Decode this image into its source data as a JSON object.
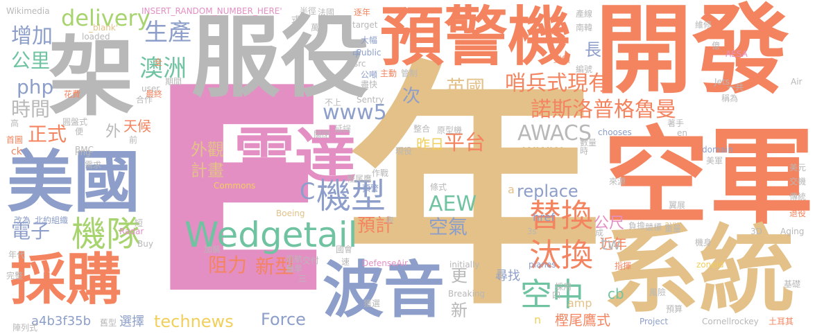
{
  "palette": {
    "orange": "#f4845f",
    "tan": "#e3c188",
    "gray": "#b8b8b8",
    "pink": "#e48fc4",
    "blue": "#8c9ec9",
    "green": "#6fc3a1",
    "lime": "#a7d46f",
    "yellow": "#f2cf5b"
  },
  "words": [
    {
      "text": "E",
      "color": "pink"
    },
    {
      "text": "年",
      "color": "tan"
    },
    {
      "text": "開發",
      "color": "orange"
    },
    {
      "text": "空軍",
      "color": "orange"
    },
    {
      "text": "系統",
      "color": "tan"
    },
    {
      "text": "服役",
      "color": "gray"
    },
    {
      "text": "架",
      "color": "gray"
    },
    {
      "text": "預警機",
      "color": "orange"
    },
    {
      "text": "美國",
      "color": "blue"
    },
    {
      "text": "採購",
      "color": "orange"
    },
    {
      "text": "雷達",
      "color": "pink"
    },
    {
      "text": "波音",
      "color": "blue"
    },
    {
      "text": "Wedgetail",
      "color": "green"
    },
    {
      "text": "機隊",
      "color": "lime"
    },
    {
      "text": "機型",
      "color": "blue"
    },
    {
      "text": "替換",
      "color": "orange"
    },
    {
      "text": "汰換",
      "color": "orange"
    },
    {
      "text": "空中",
      "color": "green"
    },
    {
      "text": "AWACS",
      "color": "gray"
    },
    {
      "text": "諾斯洛普格魯曼",
      "color": "orange"
    },
    {
      "text": "哨兵式現有",
      "color": "orange"
    },
    {
      "text": "澳洲",
      "color": "green"
    },
    {
      "text": "生產",
      "color": "blue"
    },
    {
      "text": "delivery",
      "color": "lime"
    },
    {
      "text": "增加",
      "color": "blue"
    },
    {
      "text": "公里",
      "color": "green"
    },
    {
      "text": "php",
      "color": "blue"
    },
    {
      "text": "時間",
      "color": "gray"
    },
    {
      "text": "正式",
      "color": "orange"
    },
    {
      "text": "電子",
      "color": "blue"
    },
    {
      "text": "英國",
      "color": "tan"
    },
    {
      "text": "www5",
      "color": "blue"
    },
    {
      "text": "www",
      "color": "tan"
    },
    {
      "text": "平台",
      "color": "orange"
    },
    {
      "text": "昨日",
      "color": "yellow"
    },
    {
      "text": "外觀",
      "color": "tan"
    },
    {
      "text": "計畫",
      "color": "tan"
    },
    {
      "text": "C",
      "color": "blue"
    },
    {
      "text": "AEW",
      "color": "green"
    },
    {
      "text": "空氣",
      "color": "blue"
    },
    {
      "text": "預計",
      "color": "orange"
    },
    {
      "text": "新型",
      "color": "orange"
    },
    {
      "text": "阻力",
      "color": "orange"
    },
    {
      "text": "replace",
      "color": "blue"
    },
    {
      "text": "公尺",
      "color": "pink"
    },
    {
      "text": "technews",
      "color": "yellow"
    },
    {
      "text": "Force",
      "color": "blue"
    },
    {
      "text": "近年",
      "color": "orange"
    },
    {
      "text": "更",
      "color": "gray"
    },
    {
      "text": "新",
      "color": "gray"
    },
    {
      "text": "尋找",
      "color": "blue"
    },
    {
      "text": "cb",
      "color": "green"
    },
    {
      "text": "amp",
      "color": "tan"
    },
    {
      "text": "樫尾鷹式",
      "color": "orange"
    },
    {
      "text": "選擇",
      "color": "blue"
    },
    {
      "text": "a4b3f35b",
      "color": "blue"
    },
    {
      "text": "天候",
      "color": "orange"
    },
    {
      "text": "次",
      "color": "blue"
    },
    {
      "text": "長",
      "color": "blue"
    },
    {
      "text": "外",
      "color": "gray"
    },
    {
      "text": "tw",
      "color": "gray"
    },
    {
      "text": "href",
      "color": "blue"
    },
    {
      "text": "INSERT_RANDOM_NUMBER_HERE'",
      "color": "pink"
    },
    {
      "text": "Wikimedia",
      "color": "gray"
    },
    {
      "text": "Commons",
      "color": "yellow"
    },
    {
      "text": "Boeing",
      "color": "tan"
    },
    {
      "text": "DefenseAir",
      "color": "pink"
    },
    {
      "text": "Breaking",
      "color": "gray"
    },
    {
      "text": "initially",
      "color": "gray"
    },
    {
      "text": "planes",
      "color": "blue"
    },
    {
      "text": "Jets",
      "color": "gray"
    },
    {
      "text": "chooses",
      "color": "blue"
    },
    {
      "text": "Sentry",
      "color": "gray"
    },
    {
      "text": "Cornellrockey",
      "color": "gray"
    },
    {
      "text": "Aging",
      "color": "gray"
    },
    {
      "text": "AESA",
      "color": "pink"
    },
    {
      "text": "zoneid",
      "color": "yellow"
    },
    {
      "text": "domain",
      "color": "blue"
    },
    {
      "text": "Project",
      "color": "blue"
    },
    {
      "text": "Radar",
      "color": "pink"
    },
    {
      "text": "BMC",
      "color": "gray"
    },
    {
      "text": "Public",
      "color": "blue"
    },
    {
      "text": "target",
      "color": "gray"
    },
    {
      "text": "loaded",
      "color": "gray"
    },
    {
      "text": "_blank'",
      "color": "tan"
    },
    {
      "text": "src",
      "color": "gray"
    },
    {
      "text": "img",
      "color": "gray"
    },
    {
      "text": "user",
      "color": "gray"
    },
    {
      "text": "ck",
      "color": "orange"
    },
    {
      "text": "en",
      "color": "gray"
    },
    {
      "text": "Air",
      "color": "gray"
    },
    {
      "text": "Buy",
      "color": "gray"
    },
    {
      "text": "3s",
      "color": "gray"
    },
    {
      "text": "3D",
      "color": "gray"
    },
    {
      "text": "avw",
      "color": "tan"
    },
    {
      "text": "a",
      "color": "tan"
    },
    {
      "text": "n",
      "color": "yellow"
    },
    {
      "text": "北約組織",
      "color": "blue"
    },
    {
      "text": "陣列式",
      "color": "gray"
    },
    {
      "text": "完整",
      "color": "gray"
    },
    {
      "text": "年代",
      "color": "gray"
    },
    {
      "text": "改為",
      "color": "blue"
    },
    {
      "text": "首圖",
      "color": "orange"
    },
    {
      "text": "高",
      "color": "gray"
    },
    {
      "text": "圓盤式",
      "color": "gray"
    },
    {
      "text": "花費",
      "color": "orange"
    },
    {
      "text": "便",
      "color": "gray"
    },
    {
      "text": "前",
      "color": "gray"
    },
    {
      "text": "需求",
      "color": "gray"
    },
    {
      "text": "全",
      "color": "orange"
    },
    {
      "text": "最終",
      "color": "orange"
    },
    {
      "text": "合作",
      "color": "gray"
    },
    {
      "text": "期間",
      "color": "gray"
    },
    {
      "text": "萬",
      "color": "gray"
    },
    {
      "text": "式",
      "color": "gray"
    },
    {
      "text": "半徑",
      "color": "gray"
    },
    {
      "text": "法國",
      "color": "gray"
    },
    {
      "text": "逐年",
      "color": "orange"
    },
    {
      "text": "大幅",
      "color": "blue"
    },
    {
      "text": "中",
      "color": "blue"
    },
    {
      "text": "公噸",
      "color": "blue"
    },
    {
      "text": "盡快",
      "color": "gray"
    },
    {
      "text": "主動",
      "color": "orange"
    },
    {
      "text": "管制",
      "color": "gray"
    },
    {
      "text": "不上",
      "color": "gray"
    },
    {
      "text": "延誤",
      "color": "gray"
    },
    {
      "text": "關閉",
      "color": "gray"
    },
    {
      "text": "整合",
      "color": "gray"
    },
    {
      "text": "原型機",
      "color": "gray"
    },
    {
      "text": "現役",
      "color": "gray"
    },
    {
      "text": "作戰",
      "color": "gray"
    },
    {
      "text": "樫尾鷹",
      "color": "gray"
    },
    {
      "text": "預警",
      "color": "blue"
    },
    {
      "text": "條式",
      "color": "gray"
    },
    {
      "text": "表",
      "color": "gray"
    },
    {
      "text": "加裝",
      "color": "gray"
    },
    {
      "text": "國會",
      "color": "gray"
    },
    {
      "text": "交付",
      "color": "gray"
    },
    {
      "text": "巡航",
      "color": "gray"
    },
    {
      "text": "最早",
      "color": "gray"
    },
    {
      "text": "速",
      "color": "gray"
    },
    {
      "text": "三",
      "color": "gray"
    },
    {
      "text": "獲選",
      "color": "gray"
    },
    {
      "text": "舊型",
      "color": "gray"
    },
    {
      "text": "短",
      "color": "gray"
    },
    {
      "text": "採用",
      "color": "gray"
    },
    {
      "text": "四",
      "color": "gray"
    },
    {
      "text": "產線",
      "color": "gray"
    },
    {
      "text": "南韓",
      "color": "gray"
    },
    {
      "text": "維修",
      "color": "gray"
    },
    {
      "text": "億",
      "color": "gray"
    },
    {
      "text": "編號",
      "color": "gray"
    },
    {
      "text": "封鎖",
      "color": "orange"
    },
    {
      "text": "一共",
      "color": "gray"
    },
    {
      "text": "稱為",
      "color": "gray"
    },
    {
      "text": "著手",
      "color": "gray"
    },
    {
      "text": "數量",
      "color": "gray"
    },
    {
      "text": "時",
      "color": "gray"
    },
    {
      "text": "美軍",
      "color": "gray"
    },
    {
      "text": "美元",
      "color": "gray"
    },
    {
      "text": "交機",
      "color": "gray"
    },
    {
      "text": "傳統",
      "color": "gray"
    },
    {
      "text": "翼展",
      "color": "gray"
    },
    {
      "text": "來源",
      "color": "gray"
    },
    {
      "text": "退役",
      "color": "orange"
    },
    {
      "text": "成",
      "color": "gray"
    },
    {
      "text": "負擔",
      "color": "gray"
    },
    {
      "text": "競標",
      "color": "gray"
    },
    {
      "text": "重量",
      "color": "gray"
    },
    {
      "text": "機身",
      "color": "gray"
    },
    {
      "text": "指揮",
      "color": "orange"
    },
    {
      "text": "風險",
      "color": "gray"
    },
    {
      "text": "預算",
      "color": "gray"
    },
    {
      "text": "基礎",
      "color": "gray"
    },
    {
      "text": "土耳其",
      "color": "orange"
    }
  ]
}
